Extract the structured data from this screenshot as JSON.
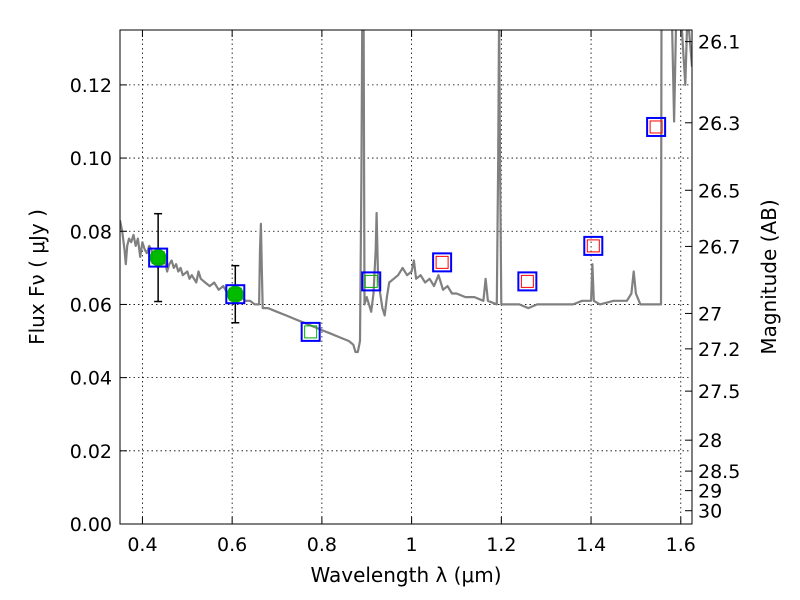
{
  "chart_data": {
    "type": "scatter",
    "title": "",
    "xlabel": "Wavelength  λ (μm)",
    "ylabel": "Flux  Fν  ( μJy )",
    "y2label": "Magnitude (AB)",
    "xlim": [
      0.35,
      1.625
    ],
    "ylim": [
      0.0,
      0.135
    ],
    "grid": true,
    "x_ticks": [
      "0.4",
      "0.6",
      "0.8",
      "1",
      "1.2",
      "1.4",
      "1.6"
    ],
    "x_tick_values": [
      0.4,
      0.6,
      0.8,
      1.0,
      1.2,
      1.4,
      1.6
    ],
    "y_ticks": [
      "0.00",
      "0.02",
      "0.04",
      "0.06",
      "0.08",
      "0.10",
      "0.12"
    ],
    "y_tick_values": [
      0.0,
      0.02,
      0.04,
      0.06,
      0.08,
      0.1,
      0.12
    ],
    "y2_ticks": [
      "26.1",
      "26.3",
      "26.5",
      "26.7",
      "27",
      "27.2",
      "27.5",
      "28",
      "28.5",
      "29",
      "30"
    ],
    "y2_tick_values": [
      26.1,
      26.3,
      26.5,
      26.7,
      27.0,
      27.2,
      27.5,
      28.0,
      28.5,
      29.0,
      30.0
    ],
    "colors": {
      "model": "#808080",
      "observed": "#00bb00",
      "box": "#0000ff",
      "inner_box": "#ff0000",
      "inner_green": "#00aa00",
      "errorbar": "#000000"
    },
    "series": [
      {
        "type": "line",
        "points": [
          [
            0.35,
            0.083
          ],
          [
            0.355,
            0.08
          ],
          [
            0.36,
            0.075
          ],
          [
            0.363,
            0.071
          ],
          [
            0.366,
            0.076
          ],
          [
            0.37,
            0.078
          ],
          [
            0.375,
            0.077
          ],
          [
            0.38,
            0.079
          ],
          [
            0.385,
            0.076
          ],
          [
            0.39,
            0.078
          ],
          [
            0.395,
            0.073
          ],
          [
            0.4,
            0.077
          ],
          [
            0.405,
            0.075
          ],
          [
            0.41,
            0.074
          ],
          [
            0.415,
            0.076
          ],
          [
            0.42,
            0.075
          ],
          [
            0.425,
            0.072
          ],
          [
            0.43,
            0.074
          ],
          [
            0.435,
            0.07
          ],
          [
            0.44,
            0.073
          ],
          [
            0.445,
            0.071
          ],
          [
            0.45,
            0.072
          ],
          [
            0.455,
            0.069
          ],
          [
            0.46,
            0.071
          ],
          [
            0.465,
            0.072
          ],
          [
            0.47,
            0.07
          ],
          [
            0.475,
            0.071
          ],
          [
            0.48,
            0.069
          ],
          [
            0.485,
            0.07
          ],
          [
            0.49,
            0.068
          ],
          [
            0.5,
            0.069
          ],
          [
            0.505,
            0.067
          ],
          [
            0.51,
            0.068
          ],
          [
            0.52,
            0.066
          ],
          [
            0.525,
            0.069
          ],
          [
            0.53,
            0.067
          ],
          [
            0.54,
            0.066
          ],
          [
            0.55,
            0.065
          ],
          [
            0.56,
            0.066
          ],
          [
            0.57,
            0.064
          ],
          [
            0.58,
            0.065
          ],
          [
            0.59,
            0.063
          ],
          [
            0.6,
            0.063
          ],
          [
            0.61,
            0.062
          ],
          [
            0.62,
            0.062
          ],
          [
            0.63,
            0.061
          ],
          [
            0.64,
            0.061
          ],
          [
            0.65,
            0.06
          ],
          [
            0.66,
            0.06
          ],
          [
            0.662,
            0.075
          ],
          [
            0.664,
            0.082
          ],
          [
            0.666,
            0.07
          ],
          [
            0.668,
            0.059
          ],
          [
            0.68,
            0.059
          ],
          [
            0.7,
            0.058
          ],
          [
            0.72,
            0.057
          ],
          [
            0.74,
            0.056
          ],
          [
            0.76,
            0.055
          ],
          [
            0.78,
            0.054
          ],
          [
            0.8,
            0.053
          ],
          [
            0.82,
            0.052
          ],
          [
            0.84,
            0.051
          ],
          [
            0.86,
            0.05
          ],
          [
            0.87,
            0.049
          ],
          [
            0.875,
            0.047
          ],
          [
            0.88,
            0.047
          ],
          [
            0.885,
            0.05
          ],
          [
            0.888,
            0.095
          ],
          [
            0.89,
            0.14
          ],
          [
            0.893,
            0.14
          ],
          [
            0.895,
            0.06
          ],
          [
            0.9,
            0.062
          ],
          [
            0.905,
            0.06
          ],
          [
            0.91,
            0.058
          ],
          [
            0.915,
            0.063
          ],
          [
            0.92,
            0.075
          ],
          [
            0.922,
            0.085
          ],
          [
            0.925,
            0.068
          ],
          [
            0.93,
            0.063
          ],
          [
            0.935,
            0.059
          ],
          [
            0.94,
            0.057
          ],
          [
            0.945,
            0.062
          ],
          [
            0.95,
            0.066
          ],
          [
            0.96,
            0.067
          ],
          [
            0.97,
            0.068
          ],
          [
            0.98,
            0.07
          ],
          [
            0.99,
            0.068
          ],
          [
            1.0,
            0.069
          ],
          [
            1.005,
            0.072
          ],
          [
            1.01,
            0.067
          ],
          [
            1.02,
            0.068
          ],
          [
            1.03,
            0.066
          ],
          [
            1.04,
            0.067
          ],
          [
            1.05,
            0.065
          ],
          [
            1.06,
            0.068
          ],
          [
            1.065,
            0.066
          ],
          [
            1.07,
            0.064
          ],
          [
            1.08,
            0.065
          ],
          [
            1.09,
            0.063
          ],
          [
            1.1,
            0.063
          ],
          [
            1.12,
            0.062
          ],
          [
            1.14,
            0.062
          ],
          [
            1.16,
            0.061
          ],
          [
            1.165,
            0.067
          ],
          [
            1.17,
            0.061
          ],
          [
            1.19,
            0.06
          ],
          [
            1.193,
            0.1
          ],
          [
            1.195,
            0.14
          ],
          [
            1.197,
            0.1
          ],
          [
            1.2,
            0.06
          ],
          [
            1.22,
            0.06
          ],
          [
            1.24,
            0.06
          ],
          [
            1.26,
            0.059
          ],
          [
            1.28,
            0.06
          ],
          [
            1.3,
            0.06
          ],
          [
            1.33,
            0.06
          ],
          [
            1.36,
            0.06
          ],
          [
            1.38,
            0.061
          ],
          [
            1.4,
            0.061
          ],
          [
            1.403,
            0.071
          ],
          [
            1.406,
            0.061
          ],
          [
            1.42,
            0.06
          ],
          [
            1.45,
            0.061
          ],
          [
            1.48,
            0.061
          ],
          [
            1.49,
            0.063
          ],
          [
            1.495,
            0.069
          ],
          [
            1.5,
            0.063
          ],
          [
            1.51,
            0.06
          ],
          [
            1.52,
            0.06
          ],
          [
            1.53,
            0.06
          ],
          [
            1.55,
            0.06
          ],
          [
            1.556,
            0.06
          ],
          [
            1.557,
            0.14
          ],
          [
            1.565,
            0.14
          ],
          [
            1.58,
            0.14
          ],
          [
            1.585,
            0.11
          ],
          [
            1.59,
            0.14
          ],
          [
            1.6,
            0.14
          ],
          [
            1.61,
            0.12
          ],
          [
            1.615,
            0.14
          ],
          [
            1.625,
            0.125
          ]
        ]
      },
      {
        "type": "scatter",
        "marker": "circle",
        "points": [
          {
            "x": 0.435,
            "y": 0.0728,
            "err": 0.012
          },
          {
            "x": 0.607,
            "y": 0.0628,
            "err": 0.0078
          }
        ]
      },
      {
        "type": "scatter",
        "marker": "square",
        "points": [
          {
            "x": 0.435,
            "y": 0.0728,
            "inner": "green"
          },
          {
            "x": 0.607,
            "y": 0.0628,
            "inner": "green"
          },
          {
            "x": 0.775,
            "y": 0.0525,
            "inner": "green"
          },
          {
            "x": 0.91,
            "y": 0.0663,
            "inner": "green"
          },
          {
            "x": 1.068,
            "y": 0.0715,
            "inner": "red"
          },
          {
            "x": 1.258,
            "y": 0.0663,
            "inner": "red"
          },
          {
            "x": 1.405,
            "y": 0.076,
            "inner": "red"
          },
          {
            "x": 1.545,
            "y": 0.1085,
            "inner": "red"
          }
        ]
      }
    ]
  }
}
